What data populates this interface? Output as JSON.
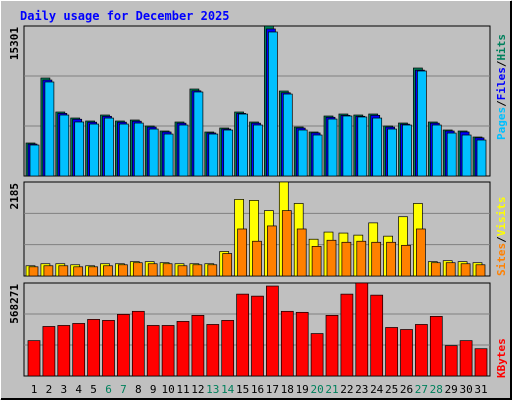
{
  "chart_data": [
    {
      "type": "bar",
      "title": "Daily usage for December 2025",
      "legend_separator": "/",
      "ylim": [
        0,
        15301
      ],
      "yticks": [
        15301
      ],
      "grid": true,
      "series": [
        {
          "name": "Hits",
          "color": "#00805c",
          "values": [
            3366,
            9996,
            6528,
            5916,
            5610,
            6222,
            5610,
            5712,
            5100,
            4590,
            5508,
            8874,
            4488,
            4896,
            6528,
            5508,
            15301,
            8670,
            4998,
            4488,
            6120,
            6324,
            6222,
            6324,
            5100,
            5406,
            11016,
            5508,
            4692,
            4590,
            3978
          ]
        },
        {
          "name": "Files",
          "color": "#0000ff",
          "values": [
            3260,
            9790,
            6390,
            5790,
            5490,
            6090,
            5490,
            5590,
            4990,
            4490,
            5390,
            8690,
            4390,
            4790,
            6390,
            5390,
            15000,
            8490,
            4890,
            4390,
            5990,
            6190,
            6090,
            6190,
            4990,
            5290,
            10800,
            5390,
            4590,
            4490,
            3890
          ]
        },
        {
          "name": "Pages",
          "color": "#00c0ff",
          "values": [
            3160,
            9590,
            6220,
            5510,
            5300,
            5910,
            5300,
            5400,
            4790,
            4280,
            5200,
            8570,
            4280,
            4690,
            6320,
            5200,
            14690,
            8360,
            4690,
            4180,
            5810,
            6120,
            6020,
            5910,
            4790,
            5200,
            10710,
            5200,
            4380,
            4180,
            3670
          ]
        }
      ]
    },
    {
      "type": "bar",
      "legend_separator": "/",
      "ylim": [
        0,
        2185
      ],
      "yticks": [
        2185
      ],
      "grid": true,
      "series": [
        {
          "name": "Visits",
          "color": "#ffff00",
          "values": [
            238,
            285,
            285,
            261,
            238,
            285,
            285,
            333,
            333,
            309,
            285,
            285,
            285,
            570,
            1781,
            1758,
            1520,
            2185,
            1686,
            855,
            1021,
            998,
            950,
            1235,
            926,
            1378,
            1686,
            333,
            356,
            333,
            309
          ]
        },
        {
          "name": "Sites",
          "color": "#ff8000",
          "values": [
            214,
            238,
            238,
            214,
            214,
            238,
            261,
            309,
            285,
            285,
            238,
            261,
            261,
            523,
            1093,
            808,
            1164,
            1520,
            1093,
            689,
            831,
            784,
            808,
            784,
            784,
            713,
            1093,
            309,
            309,
            285,
            261
          ]
        }
      ]
    },
    {
      "type": "bar",
      "ylim": [
        0,
        568271
      ],
      "yticks": [
        568271
      ],
      "grid": true,
      "categories": [
        "1",
        "2",
        "3",
        "4",
        "5",
        "6",
        "7",
        "8",
        "9",
        "10",
        "11",
        "12",
        "13",
        "14",
        "15",
        "16",
        "17",
        "18",
        "19",
        "20",
        "21",
        "22",
        "23",
        "24",
        "25",
        "26",
        "27",
        "28",
        "29",
        "30",
        "31"
      ],
      "category_colors": [
        "#000000",
        "#000000",
        "#000000",
        "#000000",
        "#000000",
        "#00805c",
        "#00805c",
        "#000000",
        "#000000",
        "#000000",
        "#000000",
        "#000000",
        "#00805c",
        "#00805c",
        "#000000",
        "#000000",
        "#000000",
        "#000000",
        "#000000",
        "#00805c",
        "#00805c",
        "#000000",
        "#000000",
        "#000000",
        "#000000",
        "#000000",
        "#00805c",
        "#00805c",
        "#000000",
        "#000000",
        "#000000"
      ],
      "series": [
        {
          "name": "KBytes",
          "color": "#ff0000",
          "values": [
            216200,
            302700,
            308900,
            321200,
            345900,
            339700,
            376800,
            395300,
            308900,
            308900,
            333600,
            370600,
            315000,
            339700,
            500300,
            488000,
            549700,
            395300,
            389100,
            259400,
            370600,
            500300,
            568271,
            494100,
            296500,
            284100,
            315000,
            364400,
            185300,
            216200,
            166800
          ]
        }
      ]
    }
  ]
}
